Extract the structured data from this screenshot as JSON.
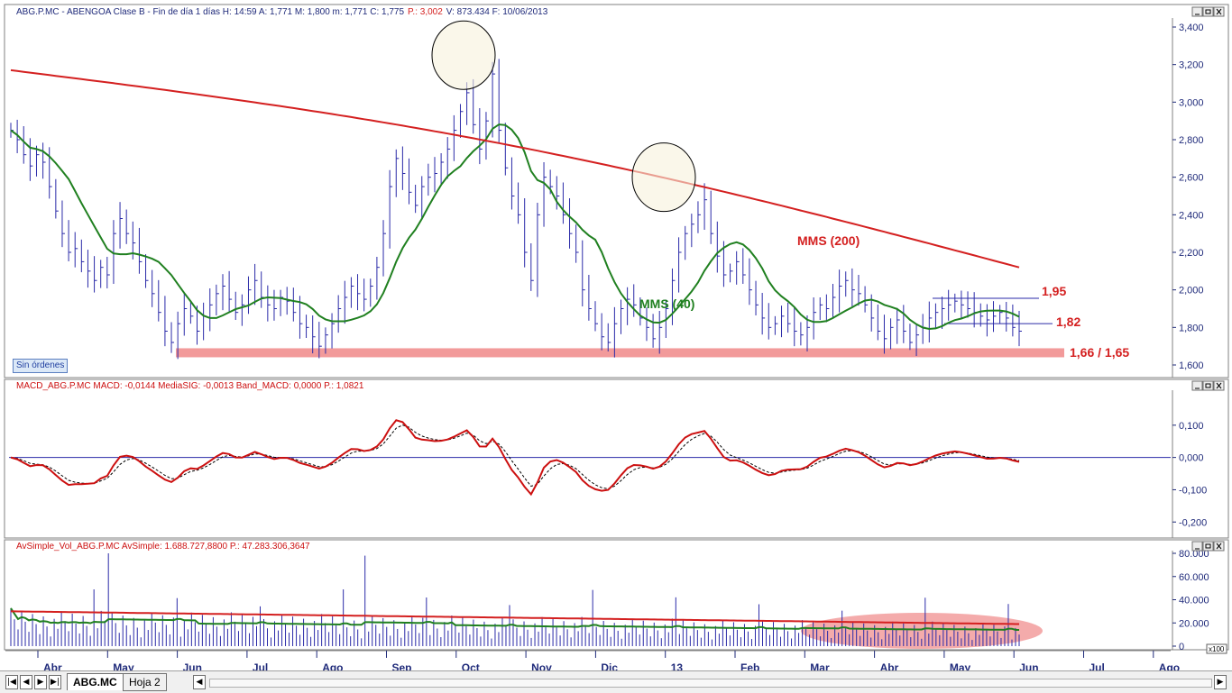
{
  "window": {
    "price_title": "ABG.P.MC - ABENGOA Clase B - Fin de día 1 días  H: 14:59  A: 1,771  M: 1,800  m: 1,771  C: 1,775",
    "price_title_extra": "P.: 3,002",
    "price_title_end": "V: 873.434  F: 10/06/2013",
    "orders_badge": "Sin órdenes"
  },
  "tabs": {
    "active": "ABG.MC",
    "second": "Hoja 2"
  },
  "colors": {
    "bars": "#2a2aa8",
    "mms200": "#d42020",
    "mms40": "#208020",
    "macd": "#cc1010",
    "signal": "#000000",
    "support_band": "#f08888"
  },
  "chart_data": [
    {
      "type": "ohlc",
      "title": "ABG.P.MC - ABENGOA Clase B",
      "x_labels": [
        "Abr",
        "May",
        "Jun",
        "Jul",
        "Ago",
        "Sep",
        "Oct",
        "Nov",
        "Dic",
        "13",
        "Feb",
        "Mar",
        "Abr",
        "May",
        "Jun",
        "Jul",
        "Ago"
      ],
      "y_ticks": [
        "3,400",
        "3,200",
        "3,000",
        "2,800",
        "2,600",
        "2,400",
        "2,200",
        "2,000",
        "1,800",
        "1,600"
      ],
      "ylim": [
        1.6,
        3.4
      ],
      "close": [
        2.85,
        2.8,
        2.72,
        2.66,
        2.72,
        2.68,
        2.55,
        2.42,
        2.3,
        2.2,
        2.22,
        2.15,
        2.1,
        2.05,
        2.12,
        2.08,
        2.3,
        2.38,
        2.3,
        2.25,
        2.15,
        2.05,
        1.98,
        1.88,
        1.78,
        1.72,
        1.82,
        1.9,
        1.86,
        1.78,
        1.86,
        1.92,
        1.98,
        2.02,
        1.95,
        1.88,
        1.92,
        2.0,
        2.05,
        1.96,
        1.92,
        1.9,
        1.96,
        1.94,
        1.88,
        1.82,
        1.8,
        1.75,
        1.7,
        1.76,
        1.82,
        1.9,
        1.96,
        2.02,
        1.98,
        1.95,
        2.02,
        2.12,
        2.3,
        2.55,
        2.7,
        2.62,
        2.52,
        2.45,
        2.55,
        2.6,
        2.62,
        2.68,
        2.75,
        2.85,
        2.95,
        3.05,
        2.88,
        2.75,
        2.9,
        3.15,
        2.85,
        2.65,
        2.5,
        2.4,
        2.2,
        2.05,
        2.4,
        2.6,
        2.55,
        2.5,
        2.4,
        2.3,
        2.2,
        2.0,
        1.9,
        1.82,
        1.75,
        1.72,
        1.82,
        1.9,
        1.95,
        1.92,
        1.85,
        1.8,
        1.74,
        1.8,
        1.9,
        2.05,
        2.2,
        2.3,
        2.35,
        2.4,
        2.48,
        2.3,
        2.18,
        2.08,
        2.1,
        2.15,
        2.08,
        2.0,
        1.92,
        1.85,
        1.8,
        1.82,
        1.86,
        1.82,
        1.78,
        1.76,
        1.8,
        1.88,
        1.92,
        1.9,
        1.96,
        2.02,
        2.05,
        2.0,
        1.98,
        1.92,
        1.85,
        1.78,
        1.74,
        1.8,
        1.84,
        1.78,
        1.72,
        1.76,
        1.8,
        1.85,
        1.88,
        1.9,
        1.92,
        1.94,
        1.92,
        1.9,
        1.88,
        1.86,
        1.84,
        1.86,
        1.88,
        1.85,
        1.8,
        1.78
      ],
      "annotations": [
        "MMS (200)",
        "MMS (40)",
        "1,95",
        "1,82",
        "1,66 / 1,65"
      ]
    },
    {
      "type": "line",
      "title": "MACD_ABG.P.MC  MACD: -0,0144  MediaSIG: -0,0013  Band_MACD: 0,0000  P.: 1,0821",
      "y_ticks": [
        "0,100",
        "0,000",
        "-0,100",
        "-0,200"
      ],
      "ylim": [
        -0.23,
        0.2
      ]
    },
    {
      "type": "bar",
      "title": "AvSimple_Vol_ABG.P.MC  AvSimple: 1.688.727,8800  P.: 47.283.306,3647",
      "y_ticks": [
        "80.000",
        "60.000",
        "40.000",
        "20.000",
        "0"
      ],
      "ylim": [
        0,
        80000
      ],
      "unit": "x100"
    }
  ]
}
